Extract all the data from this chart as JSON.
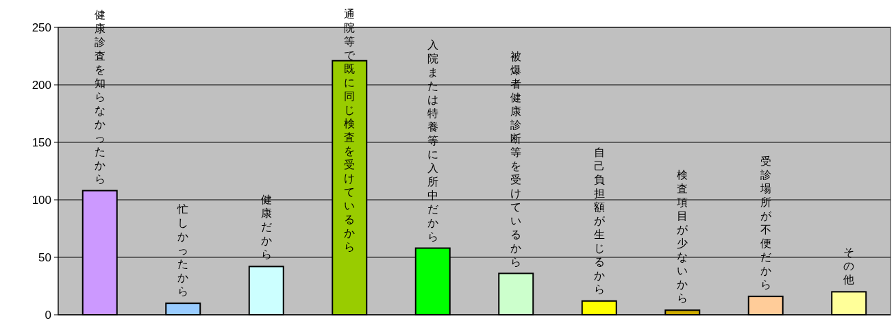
{
  "chart_data": {
    "type": "bar",
    "categories": [
      "健康診査を知らなかったから",
      "忙しかったから",
      "健康だから",
      "通院等で既に同じ検査を受けているから",
      "入院または特養等に入所中だから",
      "被爆者健康診断等を受けているから",
      "自己負担額が生じるから",
      "検査項目が少ないから",
      "受診場所が不便だから",
      "その他"
    ],
    "values": [
      108,
      10,
      42,
      221,
      58,
      36,
      12,
      4,
      16,
      20
    ],
    "colors": [
      "#cc99ff",
      "#99ccff",
      "#ccffff",
      "#99cc00",
      "#00ff00",
      "#ccffcc",
      "#ffff00",
      "#ccaa00",
      "#ffcc99",
      "#ffff99"
    ],
    "ylim": [
      0,
      250
    ],
    "yticks": [
      0,
      50,
      100,
      150,
      200,
      250
    ],
    "grid": "y"
  }
}
